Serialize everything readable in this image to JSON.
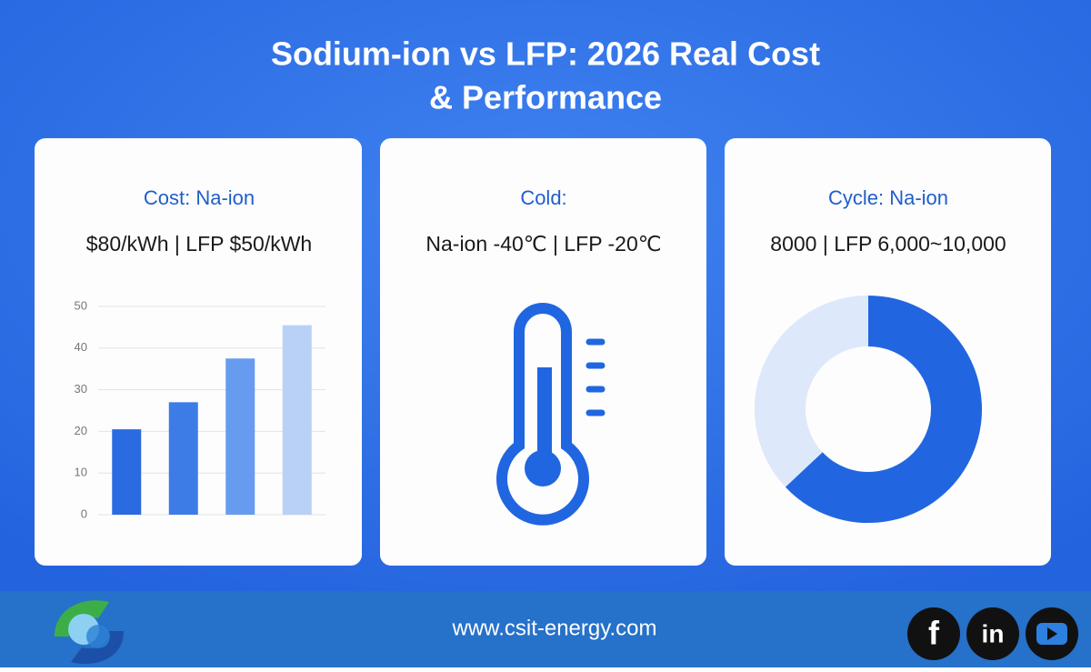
{
  "title_lines": [
    "Sodium-ion vs LFP: 2026 Real Cost",
    "& Performance"
  ],
  "cards": [
    {
      "heading": "Cost: Na-ion",
      "subheading": "$80/kWh | LFP $50/kWh",
      "chart": {
        "type": "bar",
        "values": [
          20.5,
          27,
          37.5,
          45.5
        ],
        "colors": [
          "#2a6be2",
          "#3d7ce6",
          "#679bef",
          "#b9d1f7"
        ],
        "ylim": [
          0,
          50
        ],
        "yticks": [
          0,
          10,
          20,
          30,
          40,
          50
        ],
        "grid": true
      }
    },
    {
      "heading": "Cold:",
      "subheading": "Na-ion -40℃ | LFP -20℃"
    },
    {
      "heading": "Cycle: Na-ion",
      "subheading": "8000 | LFP 6,000~10,000",
      "chart": {
        "type": "donut",
        "values": [
          63,
          37
        ],
        "colors": [
          "#2166e0",
          "#dde8fb"
        ]
      }
    }
  ],
  "footer": {
    "url": "www.csit-energy.com",
    "social": [
      "f",
      "in"
    ]
  }
}
